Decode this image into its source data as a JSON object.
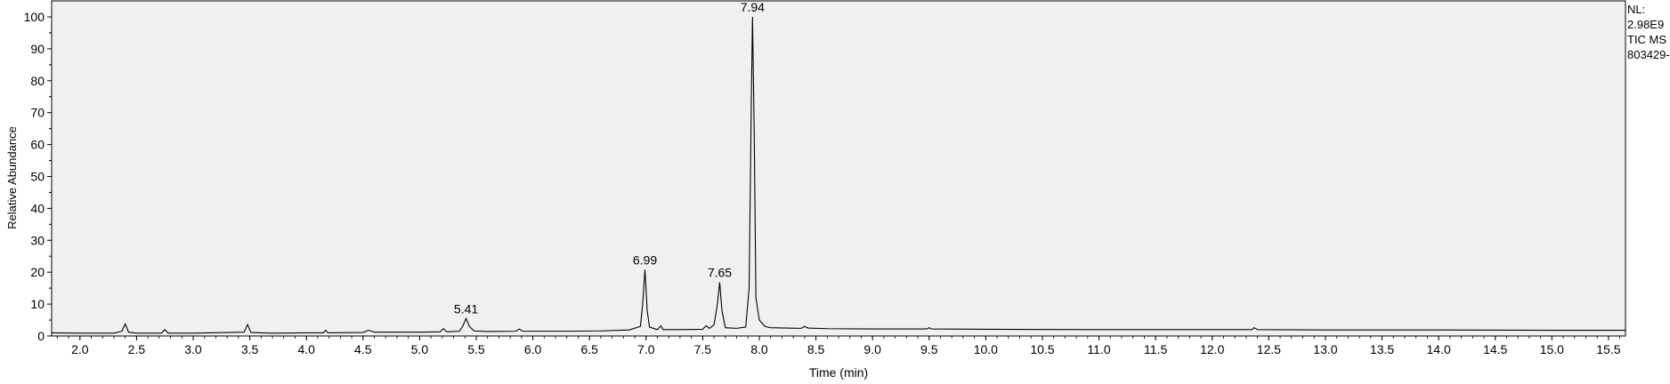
{
  "chart_data": {
    "type": "line",
    "xlabel": "Time (min)",
    "ylabel": "Relative Abundance",
    "xlim": [
      1.75,
      15.65
    ],
    "ylim": [
      0,
      100
    ],
    "x_ticks": [
      2.0,
      2.5,
      3.0,
      3.5,
      4.0,
      4.5,
      5.0,
      5.5,
      6.0,
      6.5,
      7.0,
      7.5,
      8.0,
      8.5,
      9.0,
      9.5,
      10.0,
      10.5,
      11.0,
      11.5,
      12.0,
      12.5,
      13.0,
      13.5,
      14.0,
      14.5,
      15.0,
      15.5
    ],
    "y_ticks": [
      0,
      10,
      20,
      30,
      40,
      50,
      60,
      70,
      80,
      90,
      100
    ],
    "grid": false,
    "series": [
      {
        "color": "#000000",
        "x": [
          1.75,
          2.0,
          2.3,
          2.37,
          2.4,
          2.43,
          2.5,
          2.72,
          2.75,
          2.78,
          3.0,
          3.45,
          3.48,
          3.51,
          3.7,
          4.0,
          4.15,
          4.17,
          4.19,
          4.5,
          4.55,
          4.6,
          4.8,
          5.0,
          5.18,
          5.21,
          5.24,
          5.35,
          5.38,
          5.41,
          5.44,
          5.48,
          5.6,
          5.85,
          5.88,
          5.91,
          6.0,
          6.3,
          6.6,
          6.85,
          6.95,
          6.97,
          6.99,
          7.01,
          7.03,
          7.1,
          7.13,
          7.15,
          7.3,
          7.5,
          7.53,
          7.56,
          7.6,
          7.63,
          7.65,
          7.67,
          7.7,
          7.8,
          7.88,
          7.91,
          7.93,
          7.94,
          7.955,
          7.97,
          8.0,
          8.05,
          8.1,
          8.37,
          8.4,
          8.43,
          8.6,
          9.0,
          9.48,
          9.5,
          9.52,
          10.0,
          11.0,
          12.0,
          12.35,
          12.37,
          12.4,
          13.0,
          14.0,
          15.0,
          15.65
        ],
        "y": [
          1.0,
          0.9,
          0.9,
          1.5,
          3.8,
          1.2,
          0.9,
          0.9,
          2.0,
          0.9,
          0.9,
          1.2,
          3.6,
          1.1,
          0.9,
          1.0,
          1.0,
          1.8,
          1.0,
          1.1,
          1.8,
          1.2,
          1.2,
          1.2,
          1.3,
          2.3,
          1.3,
          1.5,
          3.0,
          5.5,
          3.0,
          1.6,
          1.4,
          1.5,
          2.2,
          1.5,
          1.5,
          1.5,
          1.6,
          1.9,
          3.0,
          10.0,
          20.8,
          8.0,
          2.8,
          2.0,
          3.2,
          2.0,
          2.0,
          2.1,
          3.2,
          2.4,
          3.5,
          10.0,
          16.8,
          8.0,
          2.6,
          2.4,
          2.8,
          15.0,
          75.0,
          100,
          64.0,
          12.0,
          5.0,
          3.0,
          2.6,
          2.4,
          3.0,
          2.5,
          2.3,
          2.2,
          2.2,
          2.6,
          2.2,
          2.1,
          2.0,
          2.0,
          2.0,
          2.6,
          2.0,
          1.9,
          1.9,
          1.8,
          1.8
        ]
      }
    ],
    "annotations": [
      {
        "x": 5.41,
        "y": 5.5,
        "text": "5.41"
      },
      {
        "x": 6.99,
        "y": 20.8,
        "text": "6.99"
      },
      {
        "x": 7.65,
        "y": 16.8,
        "text": "7.65"
      },
      {
        "x": 7.94,
        "y": 100,
        "text": "7.94"
      }
    ]
  },
  "side_note": {
    "nl_label": "NL:",
    "nl_value": "2.98E9",
    "scan_filter": "TIC  MS",
    "file_name": "803429-"
  }
}
